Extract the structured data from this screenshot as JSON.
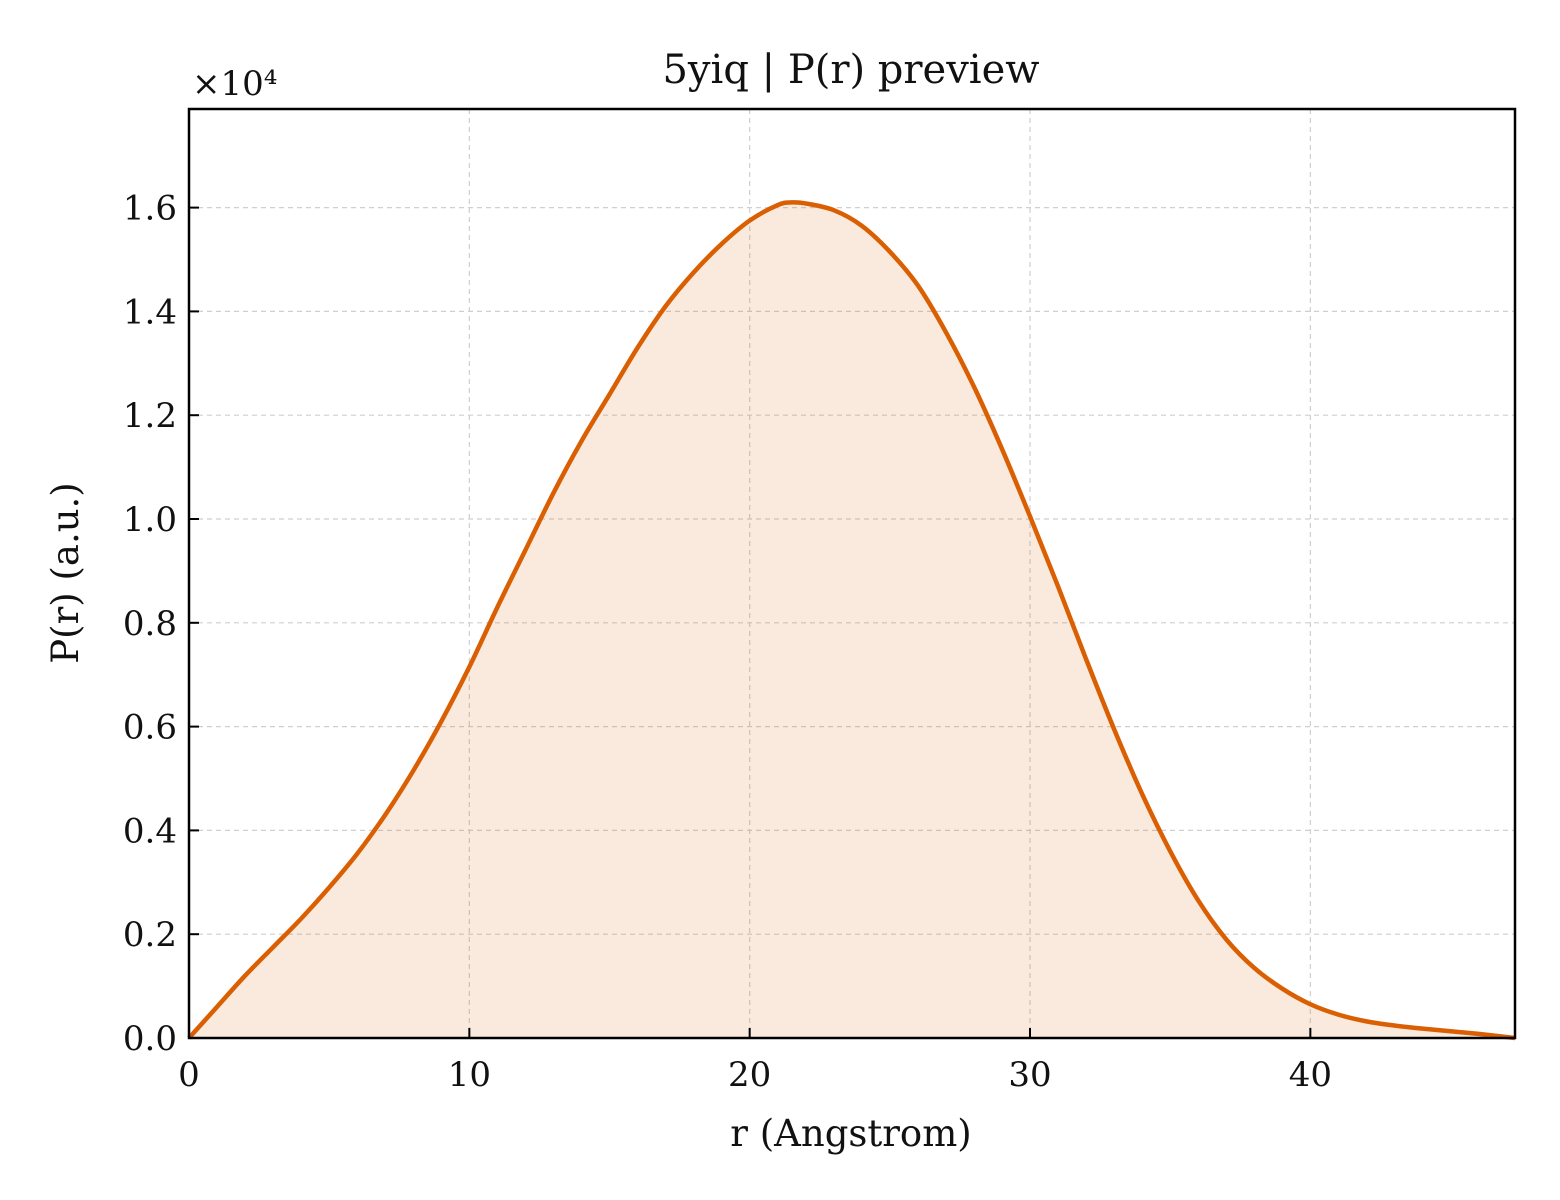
{
  "chart_data": {
    "type": "area",
    "title": "5yiq | P(r) preview",
    "xlabel": "r (Angstrom)",
    "ylabel": "P(r) (a.u.)",
    "y_multiplier_label": "×10⁴",
    "xlim": [
      0,
      47.3
    ],
    "ylim": [
      0,
      1.79
    ],
    "xticks": [
      0,
      10,
      20,
      30,
      40
    ],
    "yticks": [
      0.0,
      0.2,
      0.4,
      0.6,
      0.8,
      1.0,
      1.2,
      1.4,
      1.6
    ],
    "xtick_labels": [
      "0",
      "10",
      "20",
      "30",
      "40"
    ],
    "ytick_labels": [
      "0.0",
      "0.2",
      "0.4",
      "0.6",
      "0.8",
      "1.0",
      "1.2",
      "1.4",
      "1.6"
    ],
    "grid": true,
    "line_color": "#d95f02",
    "fill_color": "#d95f02",
    "series": [
      {
        "x": [
          0,
          1,
          2,
          3,
          4,
          5,
          6,
          7,
          8,
          9,
          10,
          11,
          12,
          13,
          14,
          15,
          16,
          17,
          18,
          19,
          20,
          21,
          21.5,
          22,
          23,
          24,
          25,
          26,
          27,
          28,
          29,
          30,
          31,
          32,
          33,
          34,
          35,
          36,
          37,
          38,
          39,
          40,
          41,
          42,
          43,
          44,
          45,
          46,
          47.3
        ],
        "y": [
          0.0,
          0.06,
          0.12,
          0.175,
          0.23,
          0.29,
          0.355,
          0.43,
          0.515,
          0.61,
          0.715,
          0.83,
          0.94,
          1.05,
          1.15,
          1.24,
          1.33,
          1.41,
          1.475,
          1.53,
          1.575,
          1.605,
          1.61,
          1.608,
          1.595,
          1.565,
          1.515,
          1.45,
          1.36,
          1.255,
          1.135,
          1.005,
          0.87,
          0.73,
          0.595,
          0.47,
          0.36,
          0.265,
          0.19,
          0.135,
          0.095,
          0.065,
          0.045,
          0.032,
          0.024,
          0.018,
          0.013,
          0.008,
          0.0
        ]
      }
    ]
  }
}
